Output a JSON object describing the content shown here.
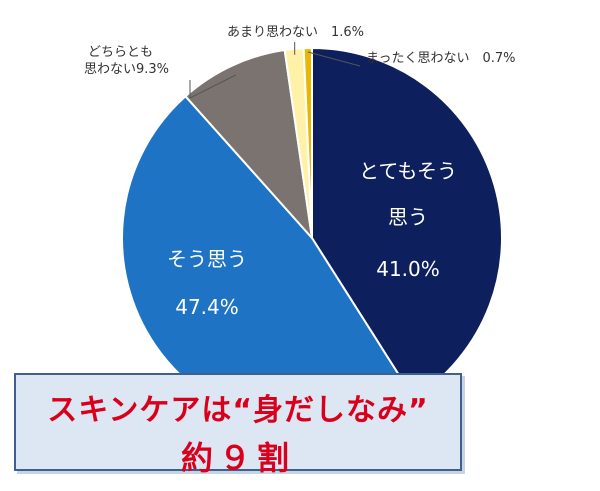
{
  "chart_data": {
    "type": "pie",
    "title": "",
    "slices": [
      {
        "key": "very",
        "label_lines": [
          "とてもそう",
          "思う"
        ],
        "value": 41.0,
        "value_text": "41.0%",
        "color": "#0d1f5c"
      },
      {
        "key": "agree",
        "label_lines": [
          "そう思う"
        ],
        "value": 47.4,
        "value_text": "47.4%",
        "color": "#1f73c4"
      },
      {
        "key": "neutral",
        "label_lines": [
          "どちらとも",
          "思わない9.3%"
        ],
        "value": 9.3,
        "value_text": "9.3%",
        "color": "#7a7370"
      },
      {
        "key": "not_much",
        "label_lines": [
          "あまり思わない　1.6%"
        ],
        "value": 1.6,
        "value_text": "1.6%",
        "color": "#fff2a8"
      },
      {
        "key": "not_at_all",
        "label_lines": [
          "まったく思わない　0.7%"
        ],
        "value": 0.7,
        "value_text": "0.7%",
        "color": "#e8b800"
      }
    ],
    "start_angle_deg": 0,
    "direction": "clockwise"
  },
  "callout": {
    "line1": "スキンケアは“身だしなみ”",
    "line2": "約９割"
  }
}
